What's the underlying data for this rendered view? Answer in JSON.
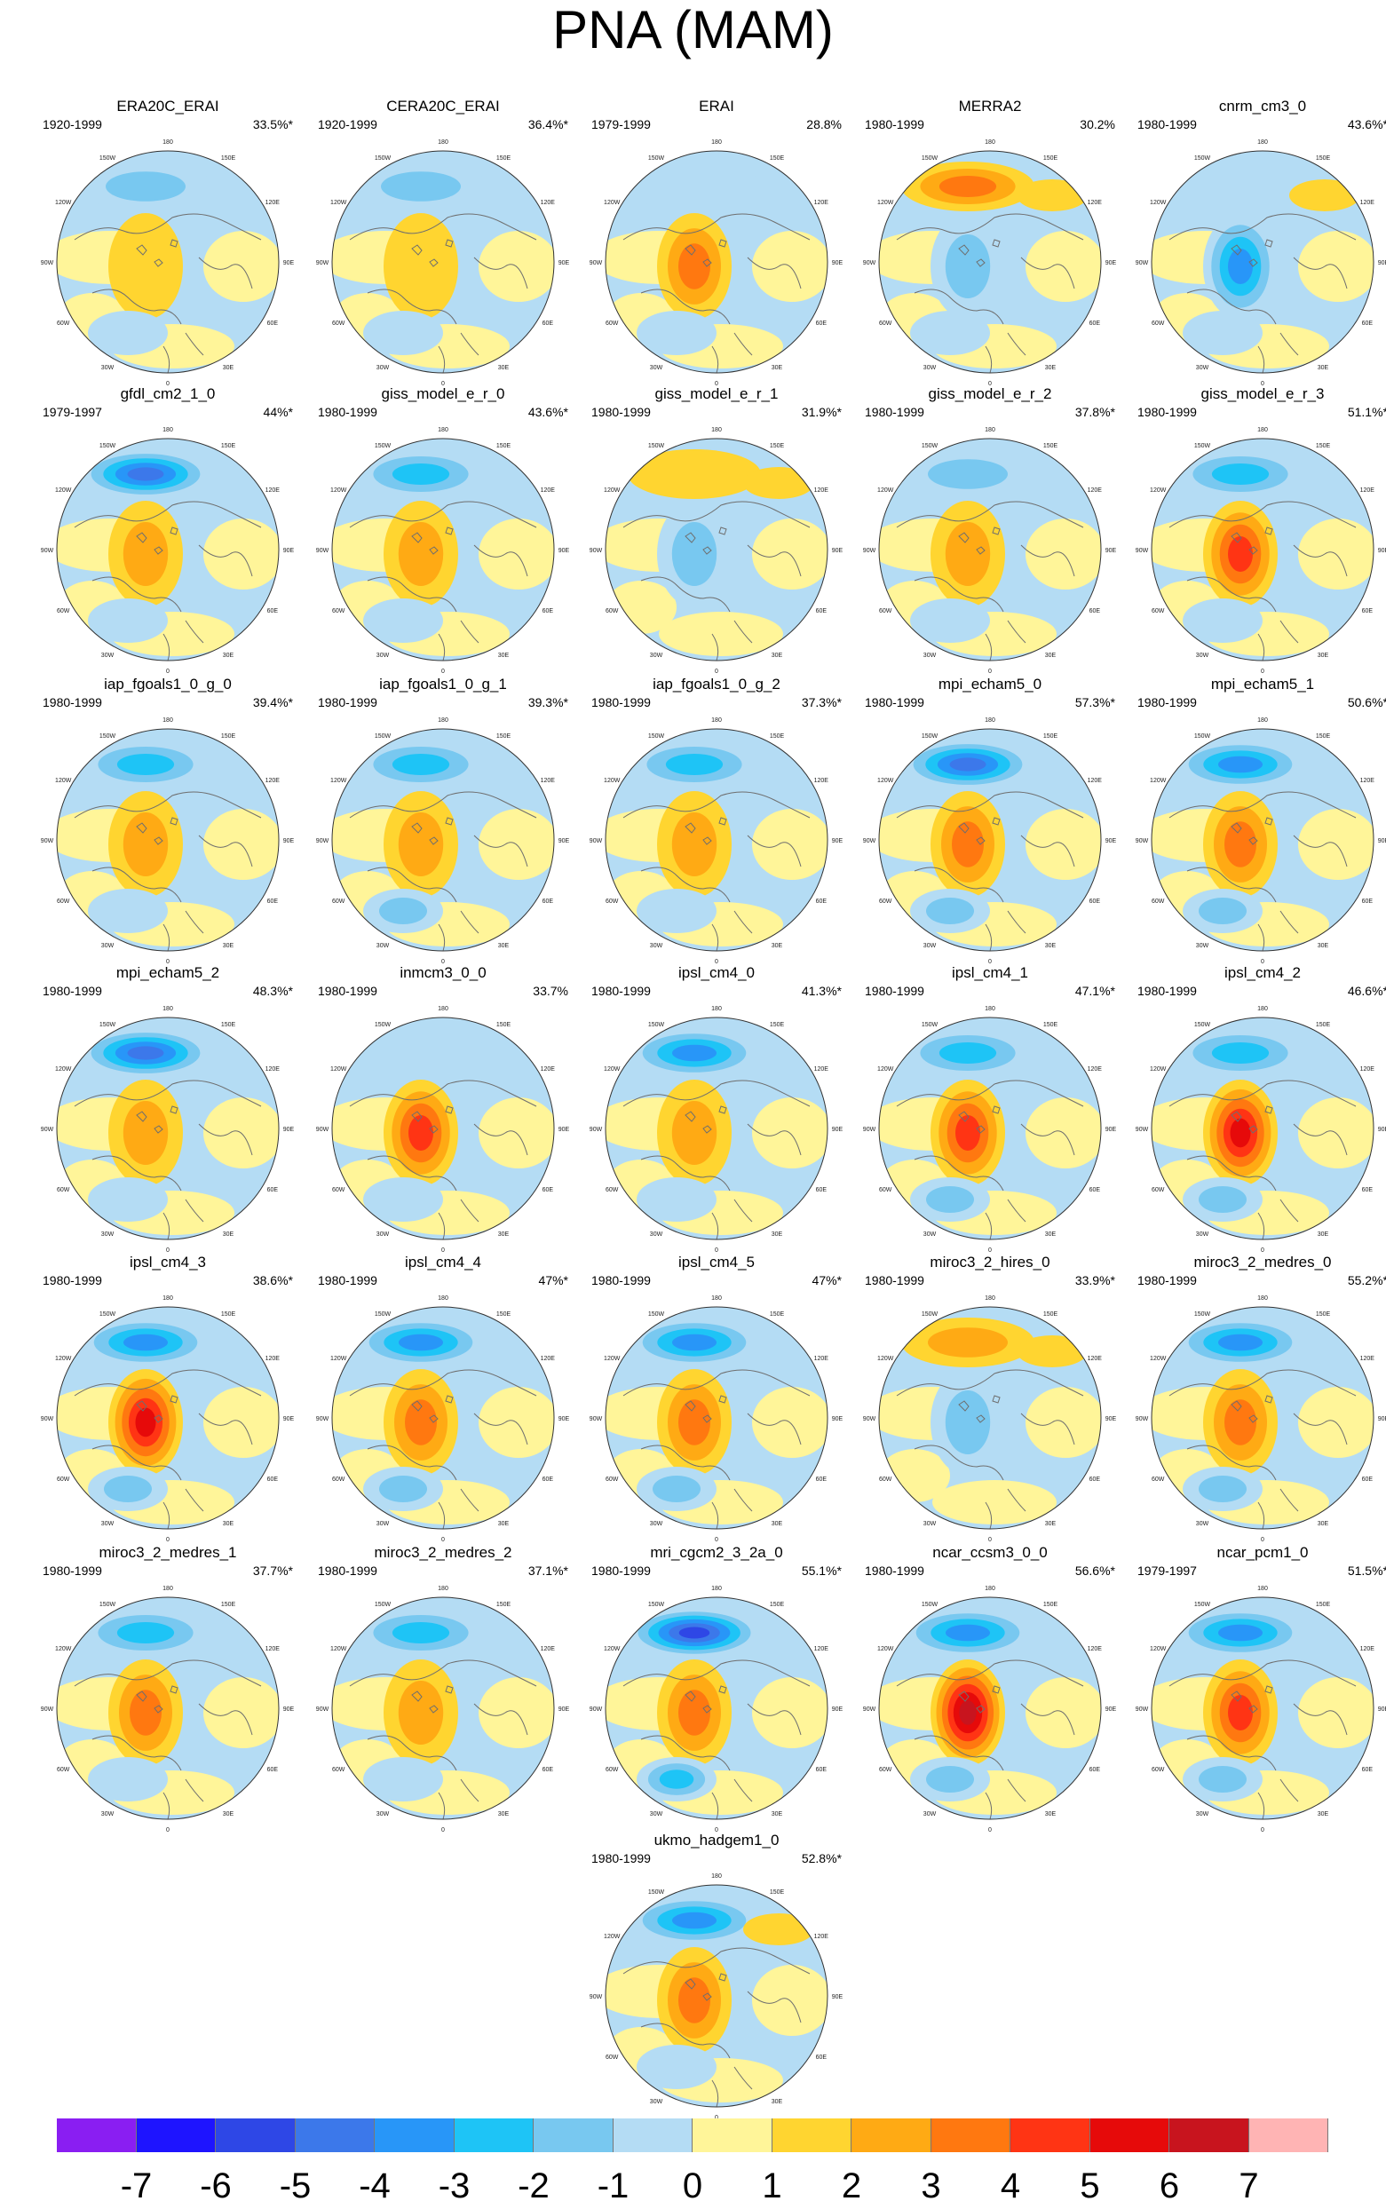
{
  "figure": {
    "title": "PNA (MAM)",
    "axis_labels": [
      "180",
      "150W",
      "150E",
      "120W",
      "120E",
      "90W",
      "90E",
      "60W",
      "60E",
      "30W",
      "30E",
      "0"
    ],
    "colors": {
      "coast": "#6e6e6e",
      "background": "#ffffff"
    }
  },
  "panels": [
    {
      "title": "ERA20C_ERAI",
      "period": "1920-1999",
      "variance": "33.5%*",
      "lobe_n": -2,
      "lobe_c": 1,
      "lobe_s": -1,
      "lobe_ne": 0
    },
    {
      "title": "CERA20C_ERAI",
      "period": "1920-1999",
      "variance": "36.4%*",
      "lobe_n": -2,
      "lobe_c": 1,
      "lobe_s": -1,
      "lobe_ne": 0
    },
    {
      "title": "ERAI",
      "period": "1979-1999",
      "variance": "28.8%",
      "lobe_n": -1,
      "lobe_c": 3,
      "lobe_s": -1,
      "lobe_ne": 0
    },
    {
      "title": "MERRA2",
      "period": "1980-1999",
      "variance": "30.2%",
      "lobe_n": 3,
      "lobe_c": -2,
      "lobe_s": -1,
      "lobe_ne": 1
    },
    {
      "title": "cnrm_cm3_0",
      "period": "1980-1999",
      "variance": "43.6%*",
      "lobe_n": 0,
      "lobe_c": -4,
      "lobe_s": -1,
      "lobe_ne": 1
    },
    {
      "title": "gfdl_cm2_1_0",
      "period": "1979-1997",
      "variance": "44%*",
      "lobe_n": -5,
      "lobe_c": 2,
      "lobe_s": -1,
      "lobe_ne": 0
    },
    {
      "title": "giss_model_e_r_0",
      "period": "1980-1999",
      "variance": "43.6%*",
      "lobe_n": -3,
      "lobe_c": 2,
      "lobe_s": -1,
      "lobe_ne": 0
    },
    {
      "title": "giss_model_e_r_1",
      "period": "1980-1999",
      "variance": "31.9%*",
      "lobe_n": 1,
      "lobe_c": -2,
      "lobe_s": 0,
      "lobe_ne": 1
    },
    {
      "title": "giss_model_e_r_2",
      "period": "1980-1999",
      "variance": "37.8%*",
      "lobe_n": -2,
      "lobe_c": 2,
      "lobe_s": -1,
      "lobe_ne": 0
    },
    {
      "title": "giss_model_e_r_3",
      "period": "1980-1999",
      "variance": "51.1%*",
      "lobe_n": -3,
      "lobe_c": 4,
      "lobe_s": -1,
      "lobe_ne": 0
    },
    {
      "title": "iap_fgoals1_0_g_0",
      "period": "1980-1999",
      "variance": "39.4%*",
      "lobe_n": -3,
      "lobe_c": 2,
      "lobe_s": -1,
      "lobe_ne": 0
    },
    {
      "title": "iap_fgoals1_0_g_1",
      "period": "1980-1999",
      "variance": "39.3%*",
      "lobe_n": -3,
      "lobe_c": 2,
      "lobe_s": -2,
      "lobe_ne": 0
    },
    {
      "title": "iap_fgoals1_0_g_2",
      "period": "1980-1999",
      "variance": "37.3%*",
      "lobe_n": -3,
      "lobe_c": 2,
      "lobe_s": -1,
      "lobe_ne": 0
    },
    {
      "title": "mpi_echam5_0",
      "period": "1980-1999",
      "variance": "57.3%*",
      "lobe_n": -5,
      "lobe_c": 3,
      "lobe_s": -2,
      "lobe_ne": 0
    },
    {
      "title": "mpi_echam5_1",
      "period": "1980-1999",
      "variance": "50.6%*",
      "lobe_n": -4,
      "lobe_c": 3,
      "lobe_s": -2,
      "lobe_ne": 0
    },
    {
      "title": "mpi_echam5_2",
      "period": "1980-1999",
      "variance": "48.3%*",
      "lobe_n": -5,
      "lobe_c": 2,
      "lobe_s": -1,
      "lobe_ne": 0
    },
    {
      "title": "inmcm3_0_0",
      "period": "1980-1999",
      "variance": "33.7%",
      "lobe_n": -1,
      "lobe_c": 4,
      "lobe_s": -1,
      "lobe_ne": 0
    },
    {
      "title": "ipsl_cm4_0",
      "period": "1980-1999",
      "variance": "41.3%*",
      "lobe_n": -4,
      "lobe_c": 2,
      "lobe_s": -1,
      "lobe_ne": 0
    },
    {
      "title": "ipsl_cm4_1",
      "period": "1980-1999",
      "variance": "47.1%*",
      "lobe_n": -3,
      "lobe_c": 4,
      "lobe_s": -2,
      "lobe_ne": 0
    },
    {
      "title": "ipsl_cm4_2",
      "period": "1980-1999",
      "variance": "46.6%*",
      "lobe_n": -3,
      "lobe_c": 5,
      "lobe_s": -2,
      "lobe_ne": 0
    },
    {
      "title": "ipsl_cm4_3",
      "period": "1980-1999",
      "variance": "38.6%*",
      "lobe_n": -4,
      "lobe_c": 5,
      "lobe_s": -2,
      "lobe_ne": 0
    },
    {
      "title": "ipsl_cm4_4",
      "period": "1980-1999",
      "variance": "47%*",
      "lobe_n": -4,
      "lobe_c": 3,
      "lobe_s": -2,
      "lobe_ne": 0
    },
    {
      "title": "ipsl_cm4_5",
      "period": "1980-1999",
      "variance": "47%*",
      "lobe_n": -4,
      "lobe_c": 3,
      "lobe_s": -2,
      "lobe_ne": 0
    },
    {
      "title": "miroc3_2_hires_0",
      "period": "1980-1999",
      "variance": "33.9%*",
      "lobe_n": 2,
      "lobe_c": -2,
      "lobe_s": 0,
      "lobe_ne": 1
    },
    {
      "title": "miroc3_2_medres_0",
      "period": "1980-1999",
      "variance": "55.2%*",
      "lobe_n": -4,
      "lobe_c": 3,
      "lobe_s": -2,
      "lobe_ne": 0
    },
    {
      "title": "miroc3_2_medres_1",
      "period": "1980-1999",
      "variance": "37.7%*",
      "lobe_n": -3,
      "lobe_c": 3,
      "lobe_s": -1,
      "lobe_ne": 0
    },
    {
      "title": "miroc3_2_medres_2",
      "period": "1980-1999",
      "variance": "37.1%*",
      "lobe_n": -3,
      "lobe_c": 2,
      "lobe_s": -1,
      "lobe_ne": 0
    },
    {
      "title": "mri_cgcm2_3_2a_0",
      "period": "1980-1999",
      "variance": "55.1%*",
      "lobe_n": -6,
      "lobe_c": 3,
      "lobe_s": -3,
      "lobe_ne": 0
    },
    {
      "title": "ncar_ccsm3_0_0",
      "period": "1980-1999",
      "variance": "56.6%*",
      "lobe_n": -4,
      "lobe_c": 6,
      "lobe_s": -2,
      "lobe_ne": 0
    },
    {
      "title": "ncar_pcm1_0",
      "period": "1979-1997",
      "variance": "51.5%*",
      "lobe_n": -4,
      "lobe_c": 4,
      "lobe_s": -2,
      "lobe_ne": 0
    },
    {
      "title": "ukmo_hadgem1_0",
      "period": "1980-1999",
      "variance": "52.8%*",
      "lobe_n": -4,
      "lobe_c": 3,
      "lobe_s": -1,
      "lobe_ne": 1
    }
  ],
  "colorbar": {
    "labels": [
      "-7",
      "-6",
      "-5",
      "-4",
      "-3",
      "-2",
      "-1",
      "0",
      "1",
      "2",
      "3",
      "4",
      "5",
      "6",
      "7"
    ],
    "colors": [
      "#8a1ef2",
      "#1e14ff",
      "#2e47e6",
      "#3c78ea",
      "#2896f8",
      "#1ec4f6",
      "#78c8f0",
      "#b4dcf4",
      "#fff599",
      "#ffd530",
      "#ffaa14",
      "#ff7810",
      "#ff3414",
      "#e60a0a",
      "#c8141e",
      "#ffb4b4"
    ]
  }
}
